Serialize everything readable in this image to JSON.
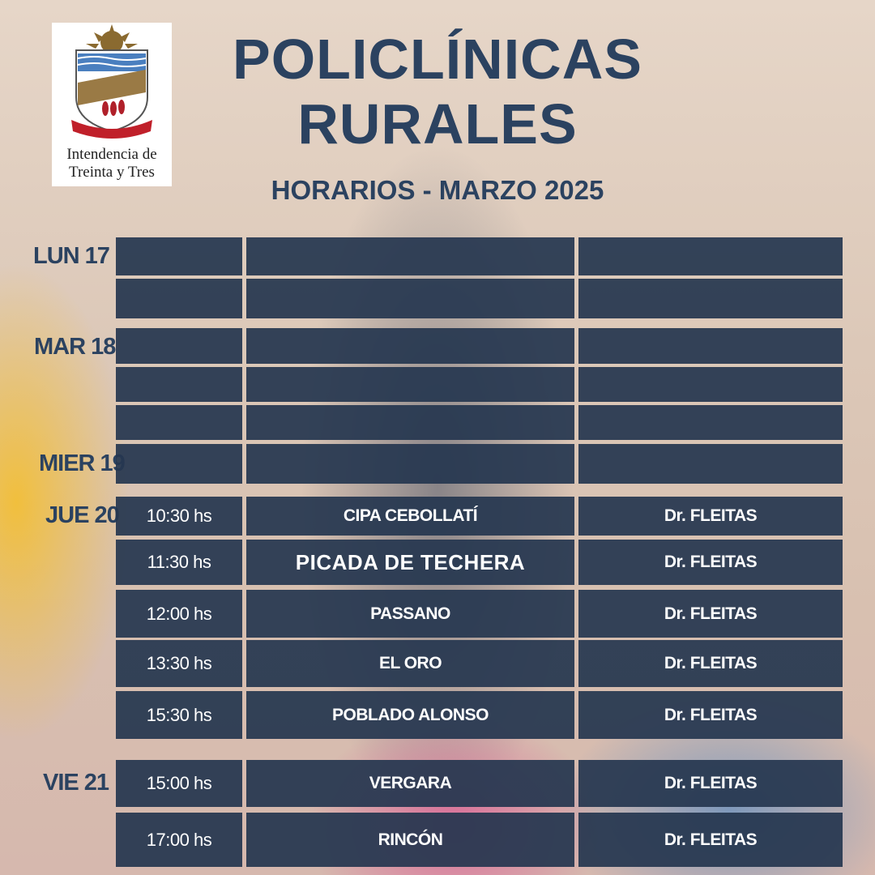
{
  "logo": {
    "line1": "Intendencia de",
    "line2": "Treinta y Tres"
  },
  "title": {
    "line1": "POLICLÍNICAS",
    "line2": "RURALES"
  },
  "subtitle": "HORARIOS -  MARZO 2025",
  "days": [
    {
      "label": "LUN 17",
      "rows": [
        {
          "time": "",
          "place": "",
          "doctor": ""
        },
        {
          "time": "",
          "place": "",
          "doctor": ""
        }
      ]
    },
    {
      "label": "MAR 18",
      "rows": [
        {
          "time": "",
          "place": "",
          "doctor": ""
        },
        {
          "time": "",
          "place": "",
          "doctor": ""
        },
        {
          "time": "",
          "place": "",
          "doctor": ""
        }
      ]
    },
    {
      "label": "MIER 19",
      "rows": [
        {
          "time": "",
          "place": "",
          "doctor": ""
        }
      ]
    },
    {
      "label": "JUE 20",
      "rows": [
        {
          "time": "10:30 hs",
          "place": "CIPA CEBOLLATÍ",
          "doctor": "Dr. FLEITAS"
        },
        {
          "time": "11:30 hs",
          "place": "PICADA DE TECHERA",
          "doctor": "Dr. FLEITAS"
        },
        {
          "time": "12:00 hs",
          "place": "PASSANO",
          "doctor": "Dr. FLEITAS"
        },
        {
          "time": "13:30 hs",
          "place": "EL ORO",
          "doctor": "Dr. FLEITAS"
        },
        {
          "time": "15:30 hs",
          "place": "POBLADO ALONSO",
          "doctor": "Dr. FLEITAS"
        }
      ]
    },
    {
      "label": "VIE 21",
      "rows": [
        {
          "time": "15:00 hs",
          "place": "VERGARA",
          "doctor": "Dr. FLEITAS"
        },
        {
          "time": "17:00 hs",
          "place": "RINCÓN",
          "doctor": "Dr. FLEITAS"
        }
      ]
    }
  ]
}
